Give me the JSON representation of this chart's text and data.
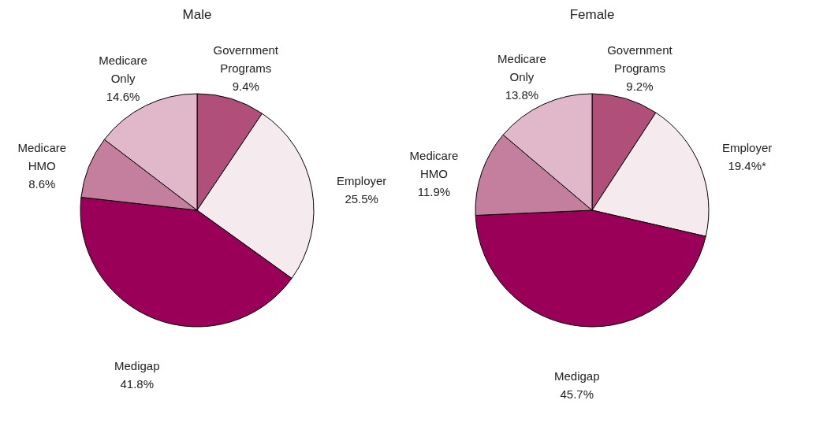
{
  "chart_data": [
    {
      "type": "pie",
      "title": "Male",
      "categories": [
        "Government Programs",
        "Employer",
        "Medigap",
        "Medicare HMO",
        "Medicare Only"
      ],
      "values": [
        9.4,
        25.5,
        41.8,
        8.6,
        14.6
      ],
      "colors": [
        "#b0507a",
        "#f5eaee",
        "#9b0058",
        "#c47f9f",
        "#e0b8c9"
      ],
      "value_labels": [
        "9.4%",
        "25.5%",
        "41.8%",
        "8.6%",
        "14.6%"
      ]
    },
    {
      "type": "pie",
      "title": "Female",
      "categories": [
        "Government Programs",
        "Employer",
        "Medigap",
        "Medicare HMO",
        "Medicare Only"
      ],
      "values": [
        9.2,
        19.4,
        45.7,
        11.9,
        13.8
      ],
      "colors": [
        "#b0507a",
        "#f5eaee",
        "#9b0058",
        "#c47f9f",
        "#e0b8c9"
      ],
      "value_labels": [
        "9.2%",
        "19.4%*",
        "45.7%",
        "11.9%",
        "13.8%"
      ]
    }
  ]
}
